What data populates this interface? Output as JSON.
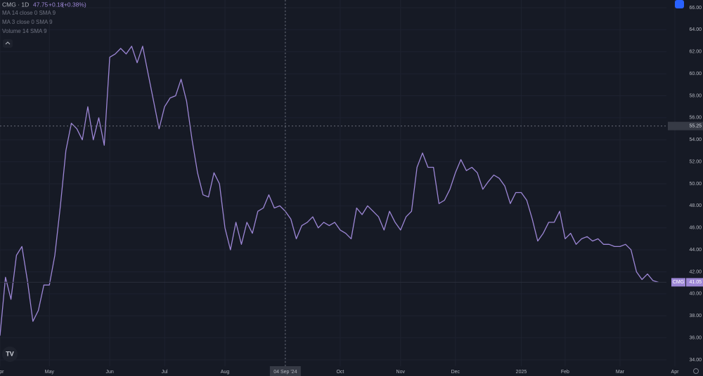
{
  "chart_data": {
    "type": "line",
    "header": {
      "title": "CMG · 1D",
      "last": "47.75",
      "change": "+0.18",
      "change_pct": "(+0.38%)"
    },
    "indicators": [
      "MA 14 close 0 SMA 9",
      "MA 3 close 0 SMA 9",
      "Volume 14 SMA 9"
    ],
    "categories": [
      "Apr",
      null,
      null,
      null,
      null,
      null,
      null,
      null,
      null,
      "May",
      null,
      null,
      null,
      null,
      null,
      null,
      null,
      null,
      null,
      null,
      "Jun",
      null,
      null,
      null,
      null,
      null,
      null,
      null,
      null,
      null,
      "Jul",
      null,
      null,
      null,
      null,
      null,
      null,
      null,
      null,
      null,
      null,
      "Aug",
      null,
      null,
      null,
      null,
      null,
      null,
      null,
      null,
      null,
      null,
      "04 Sep '24",
      null,
      null,
      null,
      null,
      null,
      null,
      null,
      null,
      null,
      "Oct",
      null,
      null,
      null,
      null,
      null,
      null,
      null,
      null,
      null,
      null,
      "Nov",
      null,
      null,
      null,
      null,
      null,
      null,
      null,
      null,
      null,
      "Dec",
      null,
      null,
      null,
      null,
      null,
      null,
      null,
      null,
      null,
      null,
      null,
      "2025",
      null,
      null,
      null,
      null,
      null,
      null,
      null,
      "Feb",
      null,
      null,
      null,
      null,
      null,
      null,
      null,
      null,
      null,
      "Mar",
      null,
      null,
      null,
      null,
      null,
      null,
      null,
      null,
      null,
      "Apr"
    ],
    "series": [
      {
        "name": "CMG",
        "color": "#9d87d6",
        "values": [
          36.2,
          41.5,
          39.5,
          43.5,
          44.3,
          41.2,
          37.5,
          38.5,
          40.8,
          40.8,
          43.5,
          48,
          53,
          55.5,
          55,
          54,
          57,
          54,
          56,
          53.5,
          61.5,
          61.8,
          62.3,
          61.8,
          62.5,
          61,
          62.5,
          60,
          57.5,
          55,
          57,
          57.8,
          58,
          59.5,
          57.5,
          54,
          51,
          49,
          48.8,
          51,
          50,
          46,
          44,
          46.5,
          44.5,
          46.5,
          45.5,
          47.5,
          47.8,
          49,
          47.8,
          48,
          47.5,
          46.8,
          45,
          46.2,
          46.5,
          47,
          46,
          46.5,
          46.2,
          46.5,
          45.8,
          45.5,
          45,
          47.8,
          47.2,
          48,
          47.5,
          47,
          45.8,
          47.5,
          46.5,
          45.8,
          47,
          47.5,
          51.5,
          52.8,
          51.5,
          51.5,
          48.2,
          48.5,
          49.5,
          51,
          52.2,
          51.2,
          51.5,
          51,
          49.5,
          50.2,
          50.8,
          50.5,
          49.8,
          48.2,
          49.2,
          49.2,
          48.5,
          46.8,
          44.8,
          45.5,
          46.5,
          46.5,
          47.5,
          45,
          45.5,
          44.5,
          45,
          45.2,
          44.8,
          45,
          44.5,
          44.5,
          44.3,
          44.3,
          44.5,
          44,
          42,
          41.3,
          41.8,
          41.2,
          41.05,
          null,
          null,
          null
        ]
      }
    ],
    "last_value": {
      "value": 41.05,
      "label": "41.05"
    },
    "crosshair": {
      "x": "04 Sep '24",
      "y": {
        "value": 55.25,
        "label": "55.25"
      }
    },
    "ylim": [
      34,
      66
    ],
    "yticks": [
      {
        "value": 34,
        "label": "34.00"
      },
      {
        "value": 36,
        "label": "36.00"
      },
      {
        "value": 38,
        "label": "38.00"
      },
      {
        "value": 40,
        "label": "40.00"
      },
      {
        "value": 42,
        "label": "42.00"
      },
      {
        "value": 44,
        "label": "44.00"
      },
      {
        "value": 46,
        "label": "46.00"
      },
      {
        "value": 48,
        "label": "48.00"
      },
      {
        "value": 50,
        "label": "50.00"
      },
      {
        "value": 52,
        "label": "52.00"
      },
      {
        "value": 54,
        "label": "54.00"
      },
      {
        "value": 56,
        "label": "56.00"
      },
      {
        "value": 58,
        "label": "58.00"
      },
      {
        "value": 60,
        "label": "60.00"
      },
      {
        "value": 62,
        "label": "62.00"
      },
      {
        "value": 64,
        "label": "64.00"
      },
      {
        "value": 66,
        "label": "66.00"
      }
    ],
    "grid": true
  }
}
